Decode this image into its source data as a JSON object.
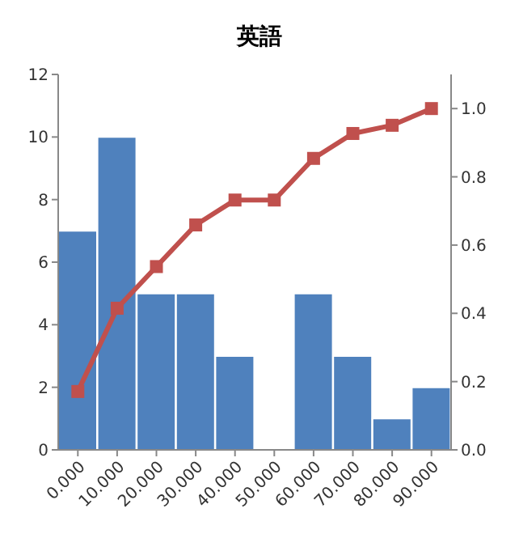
{
  "chart_data": {
    "type": "bar",
    "title": "英語",
    "categories": [
      "0.000",
      "10.000",
      "20.000",
      "30.000",
      "40.000",
      "50.000",
      "60.000",
      "70.000",
      "80.000",
      "90.000"
    ],
    "series": [
      {
        "color": "#4f81bd",
        "values": [
          7,
          10,
          5,
          5,
          3,
          0,
          5,
          3,
          1,
          2
        ]
      },
      {
        "type": "line",
        "axis": "y2",
        "color": "#c0504d",
        "values": [
          0.171,
          0.415,
          0.537,
          0.659,
          0.732,
          0.732,
          0.854,
          0.927,
          0.951,
          1.0
        ]
      }
    ],
    "ylim": [
      0,
      12
    ],
    "yticks": [
      0,
      2,
      4,
      6,
      8,
      10,
      12
    ],
    "y2lim": [
      0,
      1.1
    ],
    "y2ticks": [
      {
        "value": 0,
        "label": "0.0"
      },
      0.2,
      0.4,
      0.6,
      0.8,
      {
        "value": 1,
        "label": "1.0"
      }
    ],
    "marker": "square",
    "line_style": "solid",
    "grid": false,
    "legend": false
  }
}
